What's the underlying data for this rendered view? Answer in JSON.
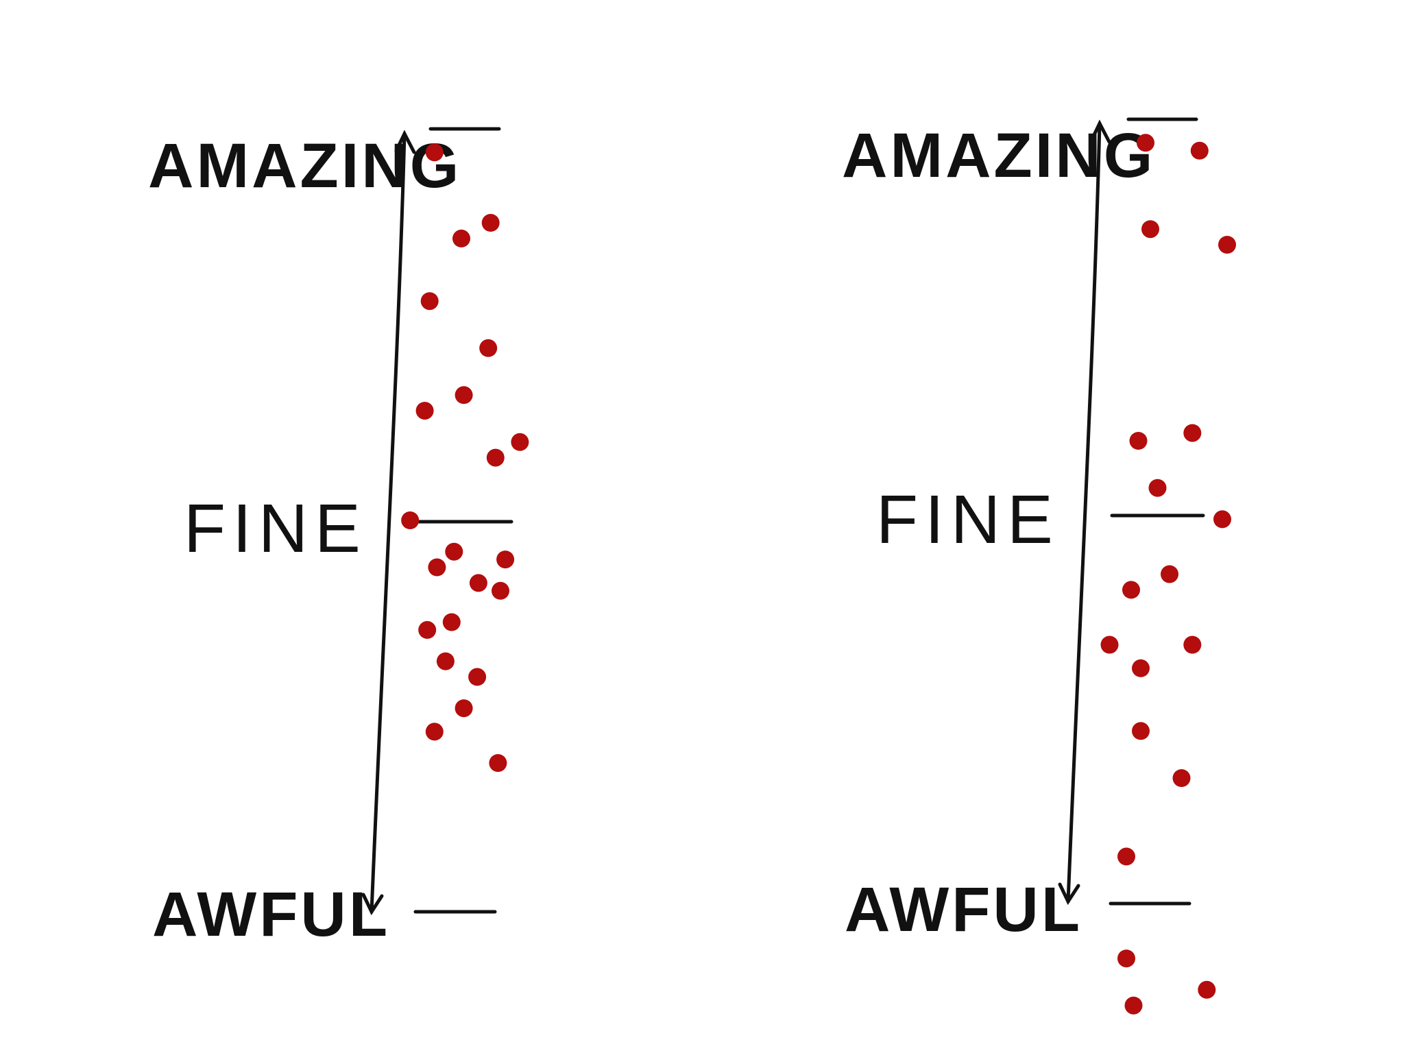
{
  "colors": {
    "dot": "#b30d0d",
    "ink": "#111111",
    "background": "#ffffff"
  },
  "panels": [
    {
      "labels": {
        "top": "AMAZING",
        "middle": "FINE",
        "bottom": "AWFUL"
      },
      "distribution": "clustered around FINE",
      "points": [
        {
          "x": 0.28,
          "y": 0.23
        },
        {
          "x": 0.52,
          "y": 0.26
        },
        {
          "x": 0.8,
          "y": 0.19
        },
        {
          "x": 0.22,
          "y": 0.36
        },
        {
          "x": 0.37,
          "y": 0.32
        },
        {
          "x": 0.64,
          "y": 0.42
        },
        {
          "x": 0.82,
          "y": 0.41
        },
        {
          "x": 0.3,
          "y": 0.44
        },
        {
          "x": 0.44,
          "y": 0.46
        },
        {
          "x": 0.08,
          "y": 0.5
        },
        {
          "x": 0.42,
          "y": 0.37
        },
        {
          "x": 0.63,
          "y": 0.3
        },
        {
          "x": 0.78,
          "y": 0.58
        },
        {
          "x": 0.98,
          "y": 0.6
        },
        {
          "x": 0.2,
          "y": 0.64
        },
        {
          "x": 0.52,
          "y": 0.66
        },
        {
          "x": 0.24,
          "y": 0.78
        },
        {
          "x": 0.72,
          "y": 0.72
        },
        {
          "x": 0.5,
          "y": 0.86
        },
        {
          "x": 0.74,
          "y": 0.88
        },
        {
          "x": 0.28,
          "y": 0.97
        },
        {
          "x": 0.86,
          "y": 0.45
        }
      ]
    },
    {
      "labels": {
        "top": "AMAZING",
        "middle": "FINE",
        "bottom": "AWFUL"
      },
      "distribution": "spread from AWFUL to AMAZING",
      "points": [
        {
          "x": 0.32,
          "y": 0.97
        },
        {
          "x": 0.77,
          "y": 0.96
        },
        {
          "x": 0.36,
          "y": 0.86
        },
        {
          "x": 1.0,
          "y": 0.84
        },
        {
          "x": 0.26,
          "y": 0.59
        },
        {
          "x": 0.71,
          "y": 0.6
        },
        {
          "x": 0.42,
          "y": 0.53
        },
        {
          "x": 0.96,
          "y": 0.49
        },
        {
          "x": 0.52,
          "y": 0.42
        },
        {
          "x": 0.2,
          "y": 0.4
        },
        {
          "x": 0.02,
          "y": 0.33
        },
        {
          "x": 0.71,
          "y": 0.33
        },
        {
          "x": 0.28,
          "y": 0.3
        },
        {
          "x": 0.28,
          "y": 0.22
        },
        {
          "x": 0.62,
          "y": 0.16
        },
        {
          "x": 0.16,
          "y": 0.06
        },
        {
          "x": 0.16,
          "y": -0.07
        },
        {
          "x": 0.83,
          "y": -0.11
        },
        {
          "x": 0.22,
          "y": -0.13
        }
      ]
    }
  ]
}
